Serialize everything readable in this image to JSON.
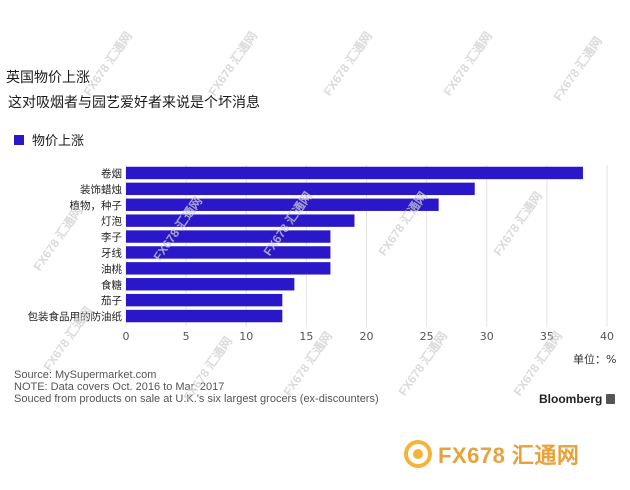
{
  "header": {
    "title": "英国物价上涨",
    "subtitle": "这对吸烟者与园艺爱好者来说是个坏消息"
  },
  "legend": {
    "label": "物价上涨",
    "color": "#2a17c9"
  },
  "chart_data": {
    "type": "bar",
    "orientation": "horizontal",
    "categories": [
      "卷烟",
      "装饰蜡烛",
      "植物，种子",
      "灯泡",
      "李子",
      "牙线",
      "油桃",
      "食糖",
      "茄子",
      "包装食品用的防油纸"
    ],
    "values": [
      38,
      29,
      26,
      19,
      17,
      17,
      17,
      14,
      13,
      13
    ],
    "xlim": [
      0,
      40
    ],
    "xticks": [
      0,
      5,
      10,
      15,
      20,
      25,
      30,
      35,
      40
    ],
    "unit": "单位：%",
    "bar_color": "#2a17c9",
    "grid": true
  },
  "notes": {
    "source": "Source: MySupermarket.com",
    "note": "NOTE: Data covers Oct. 2016 to Mar. 2017",
    "sourced": "Souced from products on sale at U.K.'s six largest grocers (ex-discounters)"
  },
  "brand": {
    "name": "Bloomberg"
  },
  "watermark": {
    "text": "FX678 汇通网",
    "logo_text": "FX678 汇通网"
  }
}
